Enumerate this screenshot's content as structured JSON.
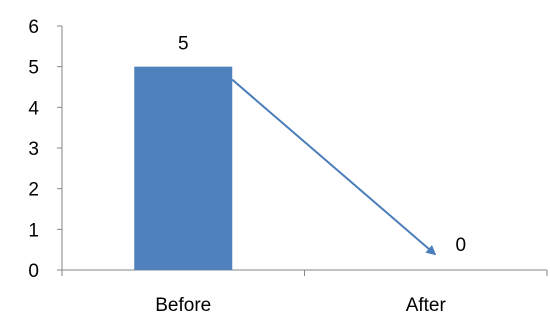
{
  "chart_data": {
    "type": "bar",
    "categories": [
      "Before",
      "After"
    ],
    "values": [
      5,
      0
    ],
    "data_labels": [
      "5",
      "0"
    ],
    "yticks": [
      "0",
      "1",
      "2",
      "3",
      "4",
      "5",
      "6"
    ],
    "ylim": [
      0,
      6
    ],
    "title": "",
    "xlabel": "",
    "ylabel": "",
    "grid": false,
    "legend": "none",
    "annotation": {
      "type": "arrow",
      "from_category": "Before",
      "from_value": 5,
      "to_category": "After",
      "to_value": 0
    },
    "colors": {
      "bar": "#4F81BD",
      "arrow": "#4A7EBB",
      "axis": "#868686",
      "text": "#000000"
    }
  }
}
